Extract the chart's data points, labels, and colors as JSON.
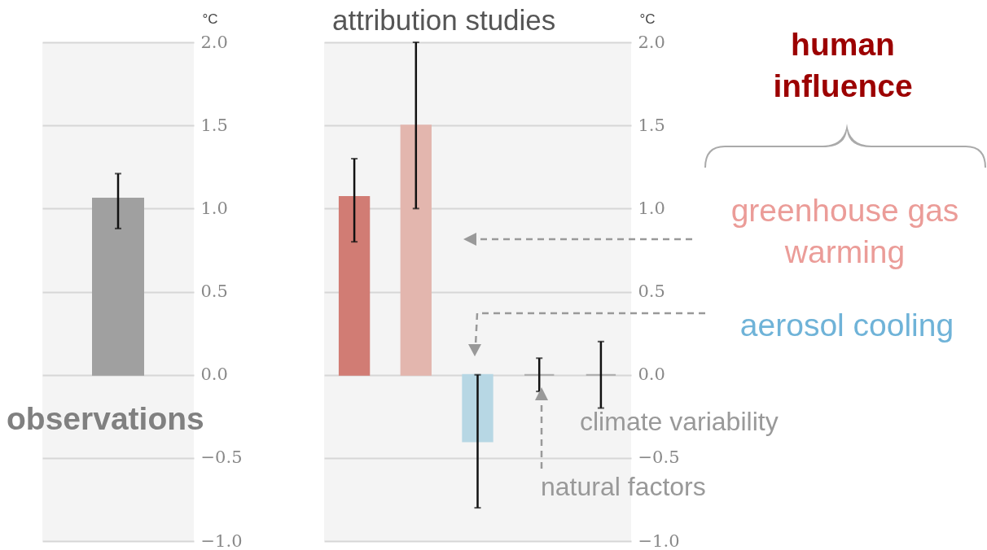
{
  "chart_data": [
    {
      "type": "bar",
      "categories": [
        null
      ],
      "values": [
        1.06
      ],
      "colors": [
        "#a0a0a0"
      ],
      "errors": [
        [
          0.88,
          1.21
        ]
      ],
      "ylabel": "°C",
      "ylim": [
        -1,
        2
      ],
      "yticks": [
        {
          "value": 2,
          "label": "2.0"
        },
        {
          "value": 1.5,
          "label": "1.5"
        },
        {
          "value": 1,
          "label": "1.0"
        },
        {
          "value": 0.5,
          "label": "0.5"
        },
        {
          "value": 0,
          "label": "0.0"
        },
        {
          "value": -0.5,
          "label": "−0.5"
        },
        {
          "value": -1,
          "label": "−1.0"
        }
      ],
      "grid": "y",
      "annotations": [
        "observations"
      ]
    },
    {
      "type": "bar",
      "title": "attribution studies",
      "categories": [
        null,
        null,
        null,
        null,
        null
      ],
      "values": [
        1.07,
        1.5,
        -0.4,
        0,
        0
      ],
      "colors": [
        "#d17c74",
        "#e3b6ae",
        "#b7d7e4",
        "#aaaaaa",
        "#aaaaaa"
      ],
      "errors": [
        [
          0.8,
          1.3
        ],
        [
          1.0,
          2.0
        ],
        [
          -0.8,
          0.0
        ],
        [
          -0.1,
          0.1
        ],
        [
          -0.2,
          0.2
        ]
      ],
      "ylabel": "°C",
      "ylim": [
        -1,
        2
      ],
      "yticks": [
        {
          "value": 2,
          "label": "2.0"
        },
        {
          "value": 1.5,
          "label": "1.5"
        },
        {
          "value": 1,
          "label": "1.0"
        },
        {
          "value": 0.5,
          "label": "0.5"
        },
        {
          "value": 0,
          "label": "0.0"
        },
        {
          "value": -0.5,
          "label": "−0.5"
        },
        {
          "value": -1,
          "label": "−1.0"
        }
      ],
      "grid": "y",
      "annotations": [
        "human influence",
        "greenhouse gas warming",
        "aerosol cooling",
        "climate variability",
        "natural factors"
      ]
    }
  ]
}
